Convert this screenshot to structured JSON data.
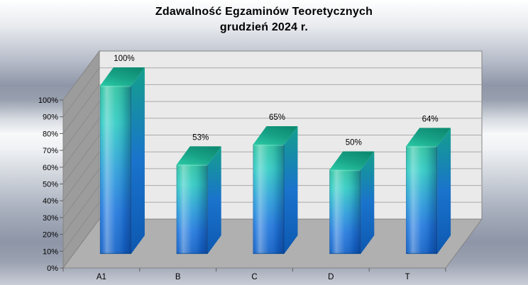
{
  "chart_data": {
    "type": "bar",
    "style": "3d-column",
    "title": "Zdawalność Egzaminów Teoretycznych",
    "subtitle": "grudzień 2024 r.",
    "categories": [
      "A1",
      "B",
      "C",
      "D",
      "T"
    ],
    "values": [
      100,
      53,
      65,
      50,
      64
    ],
    "data_labels": [
      "100%",
      "53%",
      "65%",
      "50%",
      "64%"
    ],
    "ylim": [
      0,
      100
    ],
    "ytick_step": 10,
    "yticks": [
      "0%",
      "10%",
      "20%",
      "30%",
      "40%",
      "50%",
      "60%",
      "70%",
      "80%",
      "90%",
      "100%"
    ],
    "grid": true,
    "legend_position": "none",
    "colors": {
      "bar_front_gradient": [
        "#2cc29f",
        "#31ccc4",
        "#2b9fda",
        "#2178de",
        "#1060c6"
      ],
      "bar_top_face": [
        "#2bcaa6",
        "#17a186",
        "#0e8c72"
      ],
      "bar_side_face": [
        "#14a08c",
        "#1a73cc",
        "#0d58b0"
      ],
      "back_wall": "#eaeaea",
      "side_wall": "#9c9c9c",
      "side_wall_line": "#8b8b8b",
      "floor": "#b0b0b0",
      "gridline": "#a9a9a9",
      "edge": "#848484",
      "tick": "#5f5f5f",
      "text": "#000000",
      "title_color": "#000000"
    }
  }
}
